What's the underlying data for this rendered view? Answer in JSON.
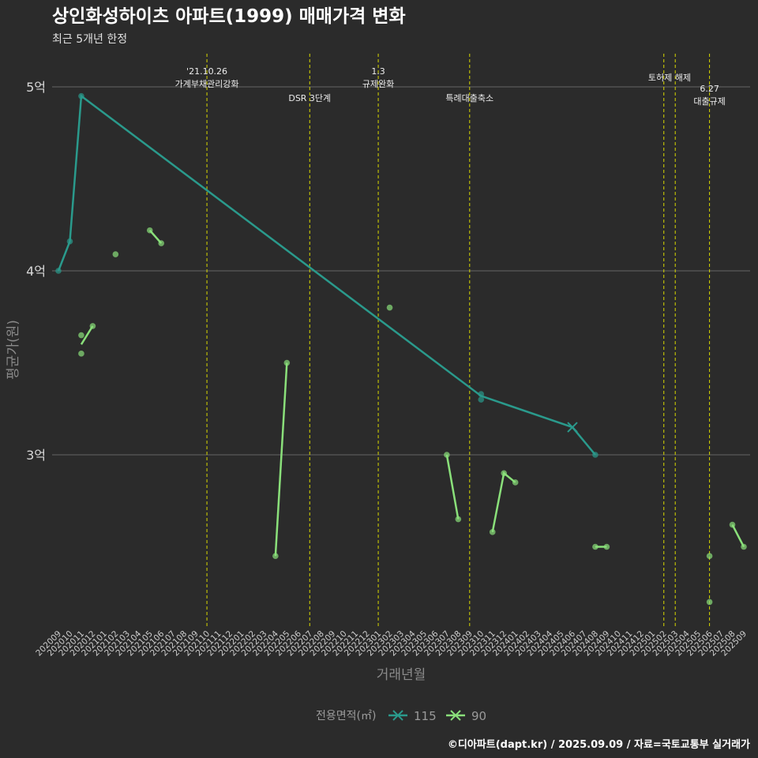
{
  "chart_data": {
    "type": "line",
    "title": "상인화성하이츠 아파트(1999) 매매가격 변화",
    "subtitle": "최근 5개년 한정",
    "xlabel": "거래년월",
    "ylabel": "평균가(원)",
    "caption": "©디아파트(dapt.kr) / 2025.09.09 / 자료=국토교통부 실거래가",
    "legend_title": "전용면적(㎡)",
    "legend_position": "bottom",
    "ylim": [
      2.05,
      5.15
    ],
    "yticks": [
      3,
      4,
      5
    ],
    "ytick_labels": [
      "3억",
      "4억",
      "5억"
    ],
    "x_categories": [
      "202009",
      "202010",
      "202011",
      "202012",
      "202101",
      "202102",
      "202103",
      "202104",
      "202105",
      "202106",
      "202107",
      "202108",
      "202109",
      "202110",
      "202111",
      "202112",
      "202201",
      "202202",
      "202203",
      "202204",
      "202205",
      "202206",
      "202207",
      "202208",
      "202209",
      "202210",
      "202211",
      "202212",
      "202301",
      "202302",
      "202303",
      "202304",
      "202305",
      "202306",
      "202307",
      "202308",
      "202309",
      "202310",
      "202311",
      "202312",
      "202401",
      "202402",
      "202403",
      "202404",
      "202405",
      "202406",
      "202407",
      "202408",
      "202409",
      "202410",
      "202411",
      "202412",
      "202501",
      "202502",
      "202503",
      "202504",
      "202505",
      "202506",
      "202507",
      "202508",
      "202509"
    ],
    "series": [
      {
        "name": "115",
        "color": "#2a9a8c",
        "marker": "x",
        "line_points": [
          {
            "x": 0,
            "y": 4.0
          },
          {
            "x": 1,
            "y": 4.16
          },
          {
            "x": 2,
            "y": 4.95
          },
          {
            "x": 37,
            "y": 3.32
          },
          {
            "x": 45,
            "y": 3.15
          },
          {
            "x": 47,
            "y": 3.0
          }
        ],
        "points": [
          {
            "x": 0,
            "y": 4.0
          },
          {
            "x": 1,
            "y": 4.16
          },
          {
            "x": 2,
            "y": 4.95
          },
          {
            "x": 37,
            "y": 3.3
          },
          {
            "x": 37,
            "y": 3.33
          },
          {
            "x": 47,
            "y": 3.0
          }
        ],
        "cross_points": [
          {
            "x": 45,
            "y": 3.15
          }
        ]
      },
      {
        "name": "90",
        "color": "#8ae07a",
        "marker": "x",
        "segments": [
          [
            {
              "x": 2,
              "y": 3.6
            },
            {
              "x": 3,
              "y": 3.7
            }
          ],
          [
            {
              "x": 8,
              "y": 4.22
            },
            {
              "x": 9,
              "y": 4.15
            }
          ],
          [
            {
              "x": 19,
              "y": 2.45
            },
            {
              "x": 20,
              "y": 3.5
            }
          ],
          [
            {
              "x": 34,
              "y": 3.0
            },
            {
              "x": 35,
              "y": 2.65
            }
          ],
          [
            {
              "x": 38,
              "y": 2.58
            },
            {
              "x": 39,
              "y": 2.9
            },
            {
              "x": 40,
              "y": 2.85
            }
          ],
          [
            {
              "x": 47,
              "y": 2.5
            },
            {
              "x": 48,
              "y": 2.5
            }
          ],
          [
            {
              "x": 59,
              "y": 2.62
            },
            {
              "x": 60,
              "y": 2.5
            }
          ]
        ],
        "points": [
          {
            "x": 2,
            "y": 3.65
          },
          {
            "x": 2,
            "y": 3.55
          },
          {
            "x": 3,
            "y": 3.7
          },
          {
            "x": 5,
            "y": 4.09
          },
          {
            "x": 8,
            "y": 4.22
          },
          {
            "x": 9,
            "y": 4.15
          },
          {
            "x": 19,
            "y": 2.45
          },
          {
            "x": 20,
            "y": 3.5
          },
          {
            "x": 29,
            "y": 3.8
          },
          {
            "x": 34,
            "y": 3.0
          },
          {
            "x": 35,
            "y": 2.65
          },
          {
            "x": 38,
            "y": 2.58
          },
          {
            "x": 39,
            "y": 2.9
          },
          {
            "x": 40,
            "y": 2.85
          },
          {
            "x": 47,
            "y": 2.5
          },
          {
            "x": 48,
            "y": 2.5
          },
          {
            "x": 57,
            "y": 2.45
          },
          {
            "x": 57,
            "y": 2.2
          },
          {
            "x": 59,
            "y": 2.62
          },
          {
            "x": 60,
            "y": 2.5
          }
        ]
      }
    ],
    "annotations": [
      {
        "x": 13,
        "lines": [
          "'21.10.26",
          "가계부채관리강화"
        ],
        "row": 0
      },
      {
        "x": 22,
        "lines": [
          "DSR 3단계"
        ],
        "row": 1
      },
      {
        "x": 28,
        "lines": [
          "1.3",
          "규제완화"
        ],
        "row": 0
      },
      {
        "x": 36,
        "lines": [
          "특례대출축소"
        ],
        "row": 1
      },
      {
        "x": 53,
        "lines": [],
        "row": 0
      },
      {
        "x": 54,
        "lines": [
          "토허제 해제"
        ],
        "row": 0,
        "text_x": 53.5
      },
      {
        "x": 57,
        "lines": [
          "6.27",
          "대출규제"
        ],
        "row": 0.5
      }
    ]
  }
}
